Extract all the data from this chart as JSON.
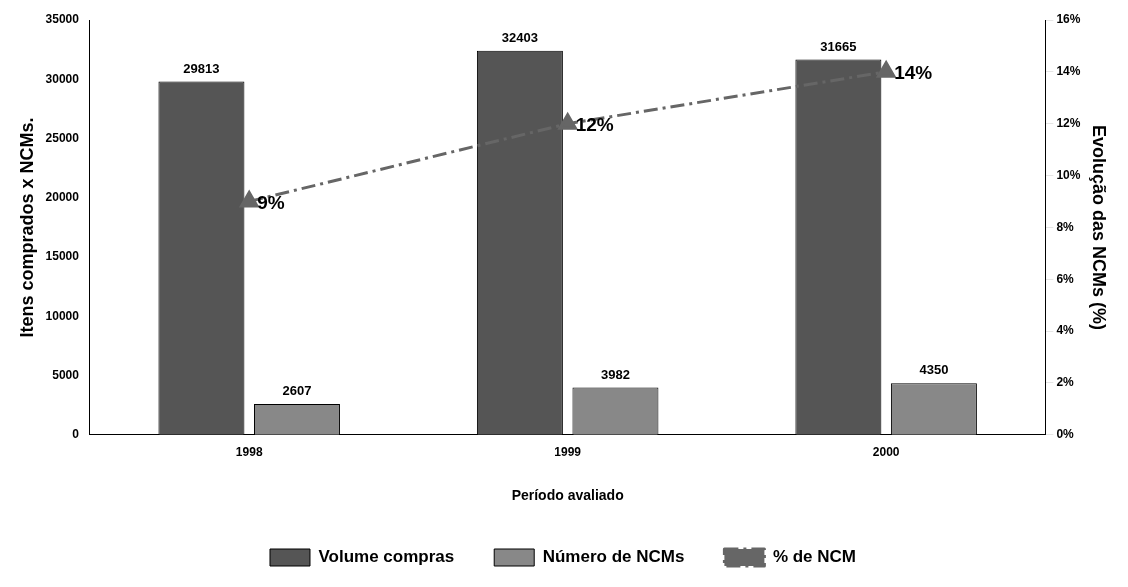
{
  "chart_data": {
    "type": "bar",
    "xlabel": "Período avaliado",
    "ylabel": "Itens comprados x NCMs.",
    "y2label": "Evolução das NCMs (%)",
    "categories": [
      "1998",
      "1999",
      "2000"
    ],
    "series": [
      {
        "name": "Volume compras",
        "color": "#555555",
        "values": [
          29813,
          32403,
          31665
        ],
        "value_labels": [
          "29813",
          "32403",
          "31665"
        ]
      },
      {
        "name": "Número de NCMs",
        "color": "#888888",
        "values": [
          2607,
          3982,
          4350
        ],
        "value_labels": [
          "2607",
          "3982",
          "4350"
        ]
      },
      {
        "name": "% de NCM",
        "type": "line",
        "axis": "y2",
        "color": "#666666",
        "values": [
          9,
          12,
          14
        ],
        "value_labels": [
          "9%",
          "12%",
          "14%"
        ],
        "marker": "triangle",
        "line_style": "dashed"
      }
    ],
    "ylim": [
      0,
      35000
    ],
    "yticks": [
      0,
      5000,
      10000,
      15000,
      20000,
      25000,
      30000,
      35000
    ],
    "y2lim": [
      0,
      16
    ],
    "y2ticks": [
      {
        "value": 0,
        "label": "0%"
      },
      {
        "value": 2,
        "label": "2%"
      },
      {
        "value": 4,
        "label": "4%"
      },
      {
        "value": 6,
        "label": "6%"
      },
      {
        "value": 8,
        "label": "8%"
      },
      {
        "value": 10,
        "label": "10%"
      },
      {
        "value": 12,
        "label": "12%"
      },
      {
        "value": 14,
        "label": "14%"
      },
      {
        "value": 16,
        "label": "16%"
      }
    ],
    "grid": false,
    "legend": "bottom"
  }
}
